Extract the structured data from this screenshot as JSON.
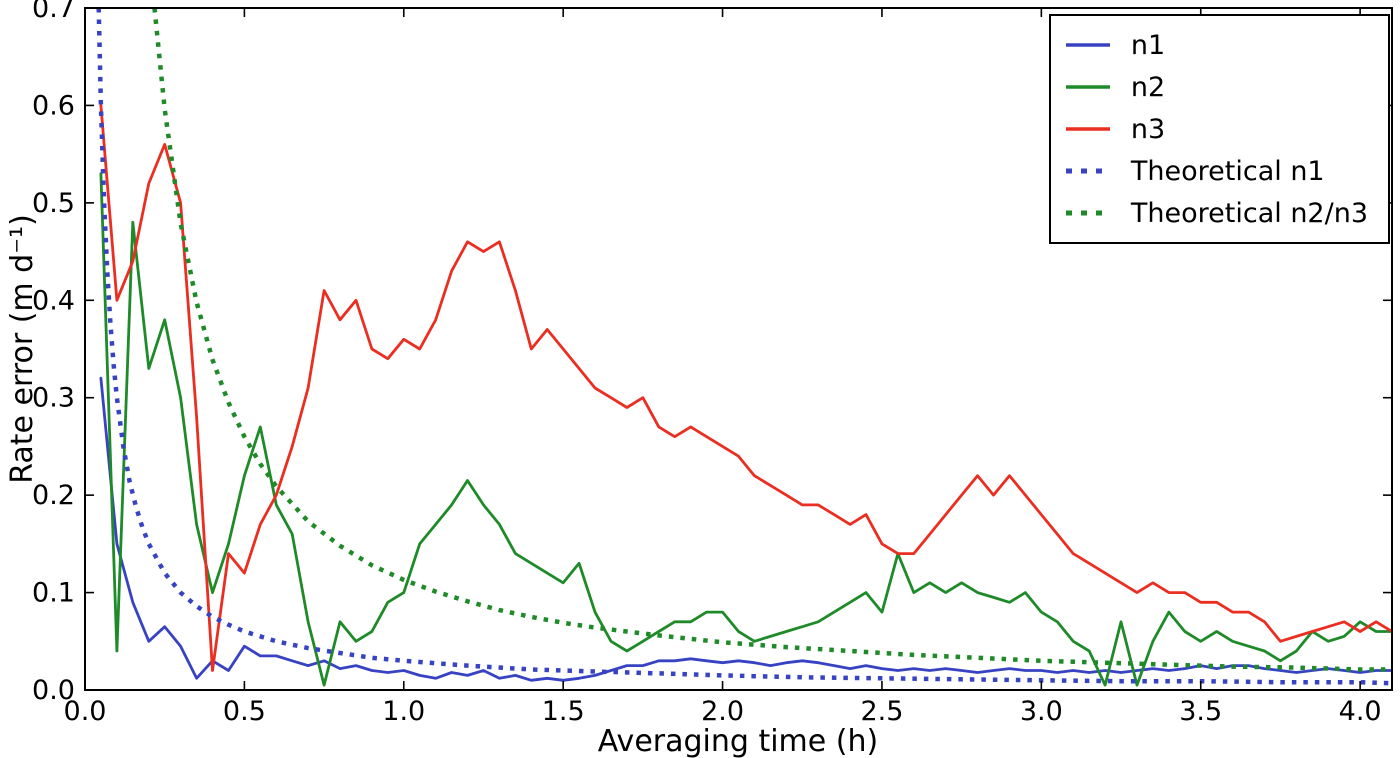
{
  "figure": {
    "background": "#ffffff"
  },
  "chart_data": {
    "type": "line",
    "title": "",
    "xlabel": "Averaging time (h)",
    "ylabel": "Rate error (m d⁻¹)",
    "xlim": [
      0,
      4.1
    ],
    "ylim": [
      0,
      0.7
    ],
    "grid": false,
    "legend_position": "upper right",
    "xticks": [
      0.0,
      0.5,
      1.0,
      1.5,
      2.0,
      2.5,
      3.0,
      3.5,
      4.0
    ],
    "xtick_labels": [
      "0.0",
      "0.5",
      "1.0",
      "1.5",
      "2.0",
      "2.5",
      "3.0",
      "3.5",
      "4.0"
    ],
    "yticks": [
      0.0,
      0.1,
      0.2,
      0.3,
      0.4,
      0.5,
      0.6,
      0.7
    ],
    "ytick_labels": [
      "0.0",
      "0.1",
      "0.2",
      "0.3",
      "0.4",
      "0.5",
      "0.6",
      "0.7"
    ],
    "series": [
      {
        "name": "n1",
        "color": "#3743c2",
        "style": "solid",
        "x": [
          0.05,
          0.1,
          0.15,
          0.2,
          0.25,
          0.3,
          0.35,
          0.4,
          0.45,
          0.5,
          0.55,
          0.6,
          0.65,
          0.7,
          0.75,
          0.8,
          0.85,
          0.9,
          0.95,
          1.0,
          1.05,
          1.1,
          1.15,
          1.2,
          1.25,
          1.3,
          1.35,
          1.4,
          1.45,
          1.5,
          1.55,
          1.6,
          1.65,
          1.7,
          1.75,
          1.8,
          1.85,
          1.9,
          1.95,
          2.0,
          2.05,
          2.1,
          2.15,
          2.2,
          2.25,
          2.3,
          2.35,
          2.4,
          2.45,
          2.5,
          2.55,
          2.6,
          2.65,
          2.7,
          2.75,
          2.8,
          2.85,
          2.9,
          2.95,
          3.0,
          3.05,
          3.1,
          3.15,
          3.2,
          3.25,
          3.3,
          3.35,
          3.4,
          3.45,
          3.5,
          3.55,
          3.6,
          3.65,
          3.7,
          3.75,
          3.8,
          3.85,
          3.9,
          3.95,
          4.0,
          4.05,
          4.1
        ],
        "y": [
          0.32,
          0.15,
          0.09,
          0.05,
          0.065,
          0.045,
          0.012,
          0.03,
          0.02,
          0.045,
          0.035,
          0.035,
          0.03,
          0.025,
          0.03,
          0.022,
          0.025,
          0.02,
          0.018,
          0.02,
          0.015,
          0.012,
          0.018,
          0.015,
          0.02,
          0.012,
          0.015,
          0.01,
          0.012,
          0.01,
          0.012,
          0.015,
          0.02,
          0.025,
          0.025,
          0.03,
          0.03,
          0.032,
          0.03,
          0.028,
          0.03,
          0.028,
          0.025,
          0.028,
          0.03,
          0.028,
          0.025,
          0.022,
          0.025,
          0.022,
          0.02,
          0.022,
          0.02,
          0.022,
          0.02,
          0.018,
          0.02,
          0.022,
          0.02,
          0.02,
          0.018,
          0.02,
          0.018,
          0.02,
          0.018,
          0.02,
          0.022,
          0.02,
          0.022,
          0.025,
          0.022,
          0.025,
          0.025,
          0.022,
          0.02,
          0.018,
          0.02,
          0.022,
          0.02,
          0.018,
          0.02,
          0.02
        ]
      },
      {
        "name": "n2",
        "color": "#1e8a28",
        "style": "solid",
        "x": [
          0.05,
          0.1,
          0.15,
          0.2,
          0.25,
          0.3,
          0.35,
          0.4,
          0.45,
          0.5,
          0.55,
          0.6,
          0.65,
          0.7,
          0.75,
          0.8,
          0.85,
          0.9,
          0.95,
          1.0,
          1.05,
          1.1,
          1.15,
          1.2,
          1.25,
          1.3,
          1.35,
          1.4,
          1.45,
          1.5,
          1.55,
          1.6,
          1.65,
          1.7,
          1.75,
          1.8,
          1.85,
          1.9,
          1.95,
          2.0,
          2.05,
          2.1,
          2.15,
          2.2,
          2.25,
          2.3,
          2.35,
          2.4,
          2.45,
          2.5,
          2.55,
          2.6,
          2.65,
          2.7,
          2.75,
          2.8,
          2.85,
          2.9,
          2.95,
          3.0,
          3.05,
          3.1,
          3.15,
          3.2,
          3.25,
          3.3,
          3.35,
          3.4,
          3.45,
          3.5,
          3.55,
          3.6,
          3.65,
          3.7,
          3.75,
          3.8,
          3.85,
          3.9,
          3.95,
          4.0,
          4.05,
          4.1
        ],
        "y": [
          0.53,
          0.04,
          0.48,
          0.33,
          0.38,
          0.3,
          0.17,
          0.1,
          0.15,
          0.22,
          0.27,
          0.19,
          0.16,
          0.07,
          0.005,
          0.07,
          0.05,
          0.06,
          0.09,
          0.1,
          0.15,
          0.17,
          0.19,
          0.215,
          0.19,
          0.17,
          0.14,
          0.13,
          0.12,
          0.11,
          0.13,
          0.08,
          0.05,
          0.04,
          0.05,
          0.06,
          0.07,
          0.07,
          0.08,
          0.08,
          0.06,
          0.05,
          0.055,
          0.06,
          0.065,
          0.07,
          0.08,
          0.09,
          0.1,
          0.08,
          0.14,
          0.1,
          0.11,
          0.1,
          0.11,
          0.1,
          0.095,
          0.09,
          0.1,
          0.08,
          0.07,
          0.05,
          0.04,
          0.005,
          0.07,
          0.005,
          0.05,
          0.08,
          0.06,
          0.05,
          0.06,
          0.05,
          0.045,
          0.04,
          0.03,
          0.04,
          0.06,
          0.05,
          0.055,
          0.07,
          0.06,
          0.06
        ]
      },
      {
        "name": "n3",
        "color": "#ea2e21",
        "style": "solid",
        "x": [
          0.05,
          0.1,
          0.15,
          0.2,
          0.25,
          0.3,
          0.35,
          0.4,
          0.45,
          0.5,
          0.55,
          0.6,
          0.65,
          0.7,
          0.75,
          0.8,
          0.85,
          0.9,
          0.95,
          1.0,
          1.05,
          1.1,
          1.15,
          1.2,
          1.25,
          1.3,
          1.35,
          1.4,
          1.45,
          1.5,
          1.55,
          1.6,
          1.65,
          1.7,
          1.75,
          1.8,
          1.85,
          1.9,
          1.95,
          2.0,
          2.05,
          2.1,
          2.15,
          2.2,
          2.25,
          2.3,
          2.35,
          2.4,
          2.45,
          2.5,
          2.55,
          2.6,
          2.65,
          2.7,
          2.75,
          2.8,
          2.85,
          2.9,
          2.95,
          3.0,
          3.05,
          3.1,
          3.15,
          3.2,
          3.25,
          3.3,
          3.35,
          3.4,
          3.45,
          3.5,
          3.55,
          3.6,
          3.65,
          3.7,
          3.75,
          3.8,
          3.85,
          3.9,
          3.95,
          4.0,
          4.05,
          4.1
        ],
        "y": [
          0.6,
          0.4,
          0.44,
          0.52,
          0.56,
          0.5,
          0.28,
          0.02,
          0.14,
          0.12,
          0.17,
          0.2,
          0.25,
          0.31,
          0.41,
          0.38,
          0.4,
          0.35,
          0.34,
          0.36,
          0.35,
          0.38,
          0.43,
          0.46,
          0.45,
          0.46,
          0.41,
          0.35,
          0.37,
          0.35,
          0.33,
          0.31,
          0.3,
          0.29,
          0.3,
          0.27,
          0.26,
          0.27,
          0.26,
          0.25,
          0.24,
          0.22,
          0.21,
          0.2,
          0.19,
          0.19,
          0.18,
          0.17,
          0.18,
          0.15,
          0.14,
          0.14,
          0.16,
          0.18,
          0.2,
          0.22,
          0.2,
          0.22,
          0.2,
          0.18,
          0.16,
          0.14,
          0.13,
          0.12,
          0.11,
          0.1,
          0.11,
          0.1,
          0.1,
          0.09,
          0.09,
          0.08,
          0.08,
          0.07,
          0.05,
          0.055,
          0.06,
          0.065,
          0.07,
          0.06,
          0.07,
          0.06
        ]
      },
      {
        "name": "Theoretical n1",
        "color": "#3743c2",
        "style": "dotted",
        "x": [
          0.043,
          0.05,
          0.06,
          0.07,
          0.08,
          0.09,
          0.1,
          0.12,
          0.14,
          0.16,
          0.18,
          0.2,
          0.25,
          0.3,
          0.35,
          0.4,
          0.45,
          0.5,
          0.6,
          0.7,
          0.8,
          0.9,
          1.0,
          1.2,
          1.4,
          1.6,
          1.8,
          2.0,
          2.25,
          2.5,
          2.75,
          3.0,
          3.25,
          3.5,
          3.75,
          4.0,
          4.1
        ],
        "y": [
          0.7,
          0.6,
          0.5,
          0.429,
          0.375,
          0.333,
          0.3,
          0.25,
          0.214,
          0.188,
          0.167,
          0.15,
          0.12,
          0.1,
          0.086,
          0.075,
          0.067,
          0.06,
          0.05,
          0.043,
          0.038,
          0.033,
          0.03,
          0.025,
          0.021,
          0.019,
          0.017,
          0.015,
          0.013,
          0.012,
          0.011,
          0.01,
          0.009,
          0.009,
          0.008,
          0.008,
          0.007
        ]
      },
      {
        "name": "Theoretical n2/n3",
        "color": "#1e8a28",
        "style": "dotted",
        "x": [
          0.218,
          0.25,
          0.3,
          0.35,
          0.4,
          0.45,
          0.5,
          0.55,
          0.6,
          0.7,
          0.8,
          0.9,
          1.0,
          1.1,
          1.2,
          1.3,
          1.4,
          1.5,
          1.6,
          1.8,
          2.0,
          2.2,
          2.4,
          2.6,
          2.8,
          3.0,
          3.2,
          3.4,
          3.6,
          3.8,
          4.0,
          4.1
        ],
        "y": [
          0.7,
          0.596,
          0.479,
          0.398,
          0.339,
          0.295,
          0.26,
          0.232,
          0.209,
          0.173,
          0.148,
          0.128,
          0.113,
          0.101,
          0.091,
          0.082,
          0.075,
          0.069,
          0.064,
          0.056,
          0.049,
          0.044,
          0.04,
          0.036,
          0.033,
          0.03,
          0.028,
          0.026,
          0.024,
          0.023,
          0.021,
          0.021
        ]
      }
    ]
  }
}
